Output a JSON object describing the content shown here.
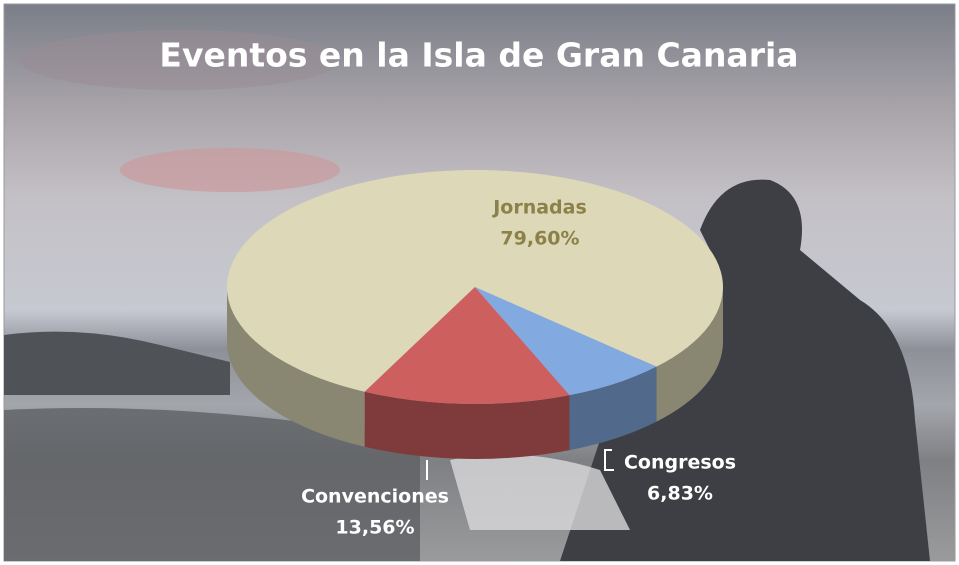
{
  "chart_data": {
    "type": "pie3d",
    "title": "Eventos en la Isla de Gran Canaria",
    "categories": [
      "Jornadas",
      "Convenciones",
      "Congresos"
    ],
    "values": [
      79.6,
      13.56,
      6.83
    ],
    "value_labels": [
      "79,60%",
      "13,56%",
      "6,83%"
    ],
    "colors": [
      "#ddd8b8",
      "#cd5f5f",
      "#82a9e0"
    ]
  }
}
